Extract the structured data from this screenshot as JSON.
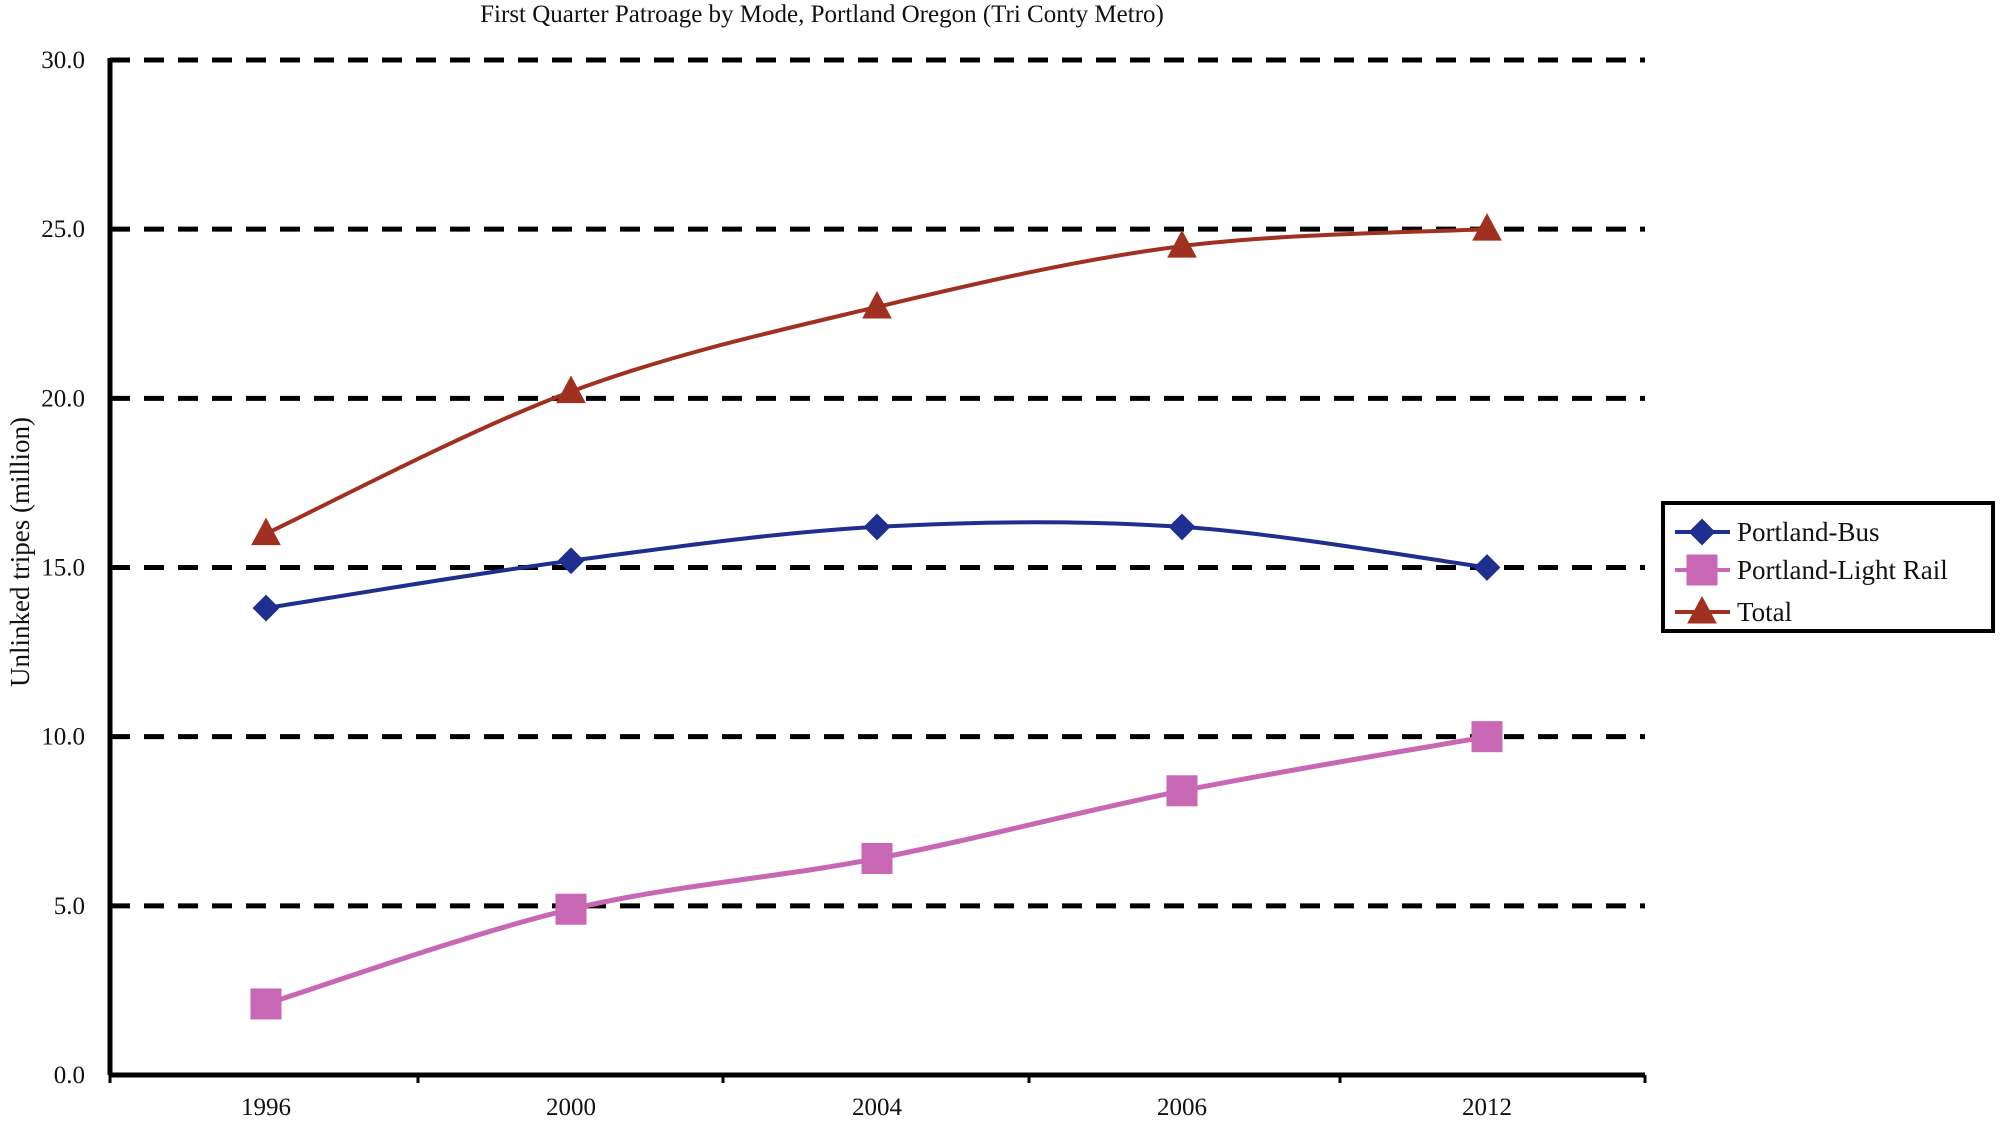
{
  "chart_data": {
    "type": "line",
    "title": "First Quarter Patroage by Mode, Portland Oregon (Tri Conty Metro)",
    "xlabel": "",
    "ylabel": "Unlinked tripes (million)",
    "categories": [
      "1996",
      "2000",
      "2004",
      "2006",
      "2012"
    ],
    "ylim": [
      0,
      30
    ],
    "yticks": [
      "0.0",
      "5.0",
      "10.0",
      "15.0",
      "20.0",
      "25.0",
      "30.0"
    ],
    "grid": true,
    "legend_position": "right",
    "series": [
      {
        "name": "Portland-Bus",
        "values": [
          13.8,
          15.2,
          16.2,
          16.2,
          15.0
        ],
        "color": "#1f2f8f",
        "marker": "diamond"
      },
      {
        "name": "Portland-Light Rail",
        "values": [
          2.1,
          4.9,
          6.4,
          8.4,
          10.0
        ],
        "color": "#c867b4",
        "marker": "square"
      },
      {
        "name": "Total",
        "values": [
          16.0,
          20.2,
          22.7,
          24.5,
          25.0
        ],
        "color": "#a0301f",
        "marker": "triangle"
      }
    ]
  }
}
